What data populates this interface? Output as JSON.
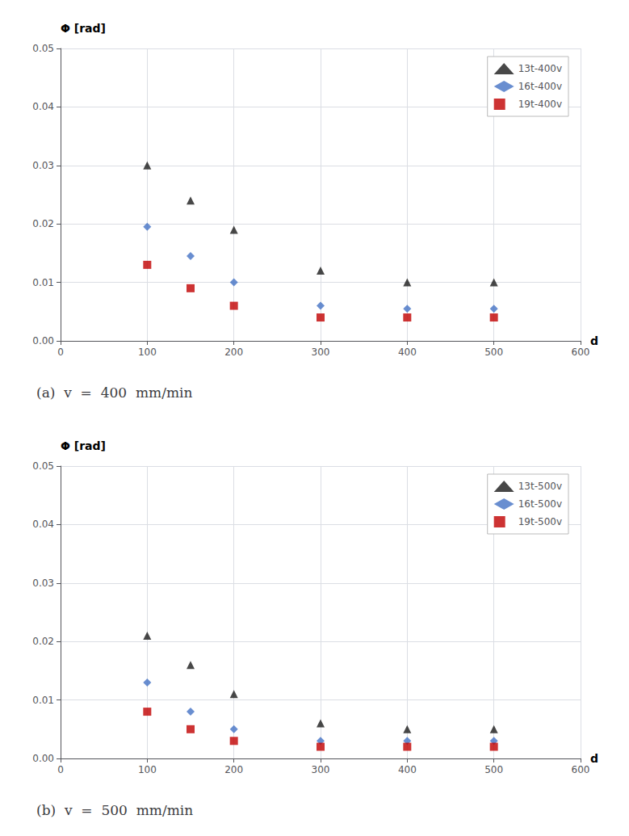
{
  "chart_data": [
    {
      "type": "scatter",
      "title": "(a)  v  =  400  mm/min",
      "xlabel": "d",
      "ylabel": "Φ [rad]",
      "x": [
        100,
        150,
        200,
        300,
        400,
        500
      ],
      "series": [
        {
          "name": "13t-400v",
          "color": "#1a1a1a",
          "marker": "triangle",
          "values": [
            0.03,
            0.024,
            0.019,
            0.012,
            0.01,
            0.01
          ]
        },
        {
          "name": "16t-400v",
          "color": "#4472c4",
          "marker": "diamond",
          "values": [
            0.0195,
            0.0145,
            0.01,
            0.006,
            0.0055,
            0.0055
          ]
        },
        {
          "name": "19t-400v",
          "color": "#c00000",
          "marker": "square",
          "values": [
            0.013,
            0.009,
            0.006,
            0.004,
            0.004,
            0.004
          ]
        }
      ],
      "xlim": [
        0,
        600
      ],
      "xticks": [
        0,
        100,
        200,
        300,
        400,
        500,
        600
      ],
      "ylim": [
        0,
        0.05
      ],
      "yticks": [
        {
          "value": 0,
          "label": "0.00"
        },
        0.01,
        0.02,
        0.03,
        0.04,
        0.05
      ],
      "grid": true,
      "legend": "upper right"
    },
    {
      "type": "scatter",
      "title": "(b)  v  =  500  mm/min",
      "xlabel": "d",
      "ylabel": "Φ [rad]",
      "x": [
        100,
        150,
        200,
        300,
        400,
        500
      ],
      "series": [
        {
          "name": "13t-500v",
          "color": "#1a1a1a",
          "marker": "triangle",
          "values": [
            0.021,
            0.016,
            0.011,
            0.006,
            0.005,
            0.005
          ]
        },
        {
          "name": "16t-500v",
          "color": "#4472c4",
          "marker": "diamond",
          "values": [
            0.013,
            0.008,
            0.005,
            0.003,
            0.003,
            0.003
          ]
        },
        {
          "name": "19t-500v",
          "color": "#c00000",
          "marker": "square",
          "values": [
            0.008,
            0.005,
            0.003,
            0.002,
            0.002,
            0.002
          ]
        }
      ],
      "xlim": [
        0,
        600
      ],
      "xticks": [
        0,
        100,
        200,
        300,
        400,
        500,
        600
      ],
      "ylim": [
        0,
        0.05
      ],
      "yticks": [
        {
          "value": 0,
          "label": "0.00"
        },
        0.01,
        0.02,
        0.03,
        0.04,
        0.05
      ],
      "grid": true,
      "legend": "upper right"
    }
  ]
}
